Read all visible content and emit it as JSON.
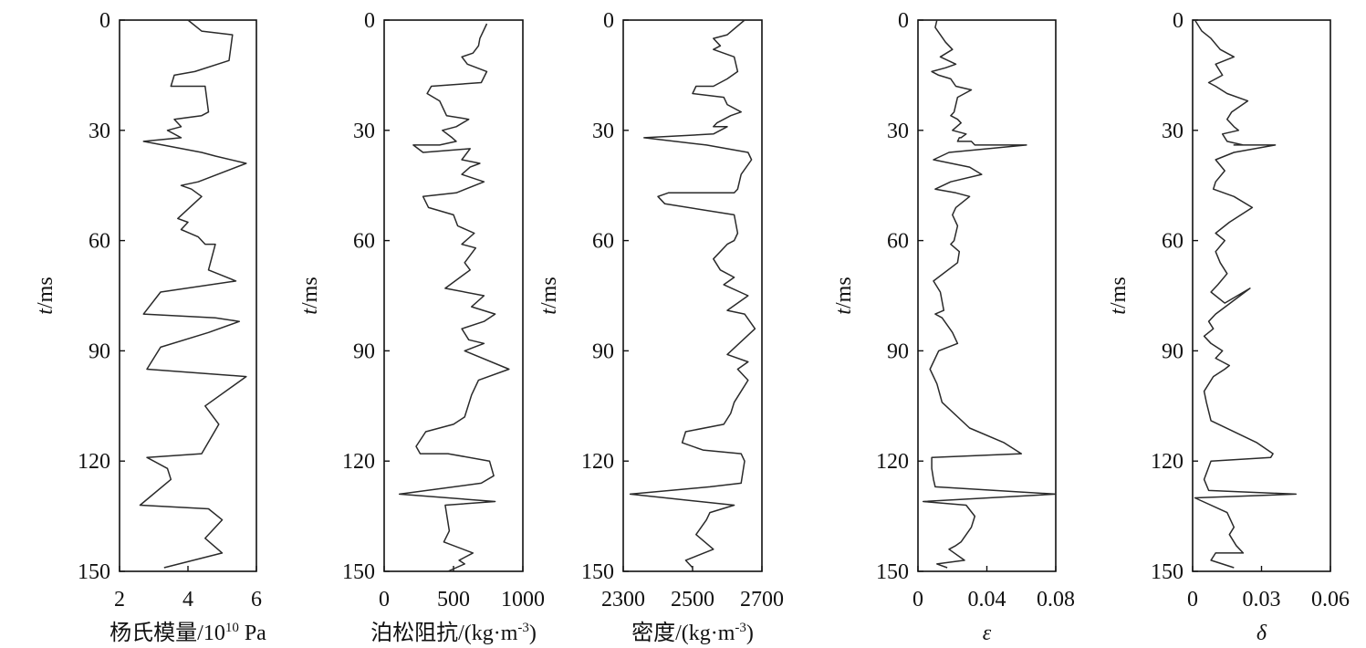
{
  "chart_data": [
    {
      "type": "line",
      "orientation": "vertical-log",
      "xlabel_main": "杨氏模量/10",
      "xlabel_sup": "10",
      "xlabel_tail": " Pa",
      "ylabel_main": "t",
      "ylabel_tail": "/ms",
      "xlim": [
        2,
        6
      ],
      "ylim": [
        0,
        150
      ],
      "xticks": [
        "2",
        "4",
        "6"
      ],
      "yticks": [
        "0",
        "30",
        "60",
        "90",
        "120",
        "150"
      ],
      "series": [
        {
          "x": [
            4.0,
            4.4,
            5.3,
            5.2,
            4.2,
            3.6,
            3.5,
            4.5,
            4.6,
            4.4,
            3.6,
            3.8,
            3.4,
            3.8,
            2.7,
            4.4,
            4.8,
            5.7,
            4.3,
            3.8,
            4.1,
            4.4,
            3.7,
            4.0,
            3.8,
            4.3,
            4.5,
            4.8,
            4.6,
            5.4,
            3.2,
            2.7,
            4.8,
            5.5,
            4.6,
            3.2,
            2.8,
            5.7,
            4.5,
            4.9,
            4.4,
            2.8,
            3.4,
            3.5,
            2.6,
            4.6,
            5.0,
            4.5,
            5.0,
            3.3
          ],
          "y": [
            0,
            3,
            4,
            11,
            14,
            15,
            18,
            18,
            25,
            26,
            27,
            29,
            30,
            32,
            33,
            36,
            37,
            39,
            44,
            45,
            46,
            48,
            54,
            55,
            57,
            59,
            61,
            61,
            68,
            71,
            74,
            80,
            81,
            82,
            85,
            89,
            95,
            97,
            105,
            110,
            118,
            119,
            122,
            125,
            132,
            133,
            136,
            141,
            145,
            149
          ]
        }
      ]
    },
    {
      "type": "line",
      "orientation": "vertical-log",
      "xlabel_main": "泊松阻抗/(kg·m",
      "xlabel_sup": "-3",
      "xlabel_tail": ")",
      "ylabel_main": "t",
      "ylabel_tail": "/ms",
      "xlim": [
        0,
        1000
      ],
      "ylim": [
        0,
        150
      ],
      "xticks": [
        "0",
        "500",
        "1000"
      ],
      "yticks": [
        "0",
        "30",
        "60",
        "90",
        "120",
        "150"
      ],
      "series": [
        {
          "x": [
            740,
            690,
            680,
            640,
            560,
            600,
            740,
            700,
            340,
            310,
            400,
            450,
            610,
            520,
            420,
            490,
            520,
            400,
            210,
            280,
            620,
            560,
            690,
            620,
            560,
            720,
            520,
            280,
            320,
            500,
            530,
            650,
            560,
            660,
            580,
            620,
            440,
            720,
            630,
            800,
            720,
            560,
            610,
            720,
            580,
            900,
            680,
            630,
            580,
            500,
            300,
            230,
            260,
            460,
            760,
            790,
            700,
            110,
            800,
            440,
            470,
            430,
            640,
            540,
            580,
            460
          ],
          "y": [
            1,
            5,
            7,
            9,
            10,
            12,
            14,
            17,
            18,
            20,
            22,
            26,
            27,
            29,
            30,
            32,
            33,
            34,
            34,
            36,
            35,
            38,
            39,
            40,
            42,
            44,
            47,
            48,
            51,
            53,
            56,
            58,
            61,
            62,
            66,
            68,
            73,
            75,
            78,
            80,
            82,
            84,
            87,
            88,
            90,
            95,
            98,
            102,
            108,
            110,
            112,
            116,
            118,
            118,
            120,
            124,
            126,
            129,
            131,
            132,
            139,
            142,
            145,
            147,
            148,
            150
          ]
        }
      ]
    },
    {
      "type": "line",
      "orientation": "vertical-log",
      "xlabel_main": "密度/(kg·m",
      "xlabel_sup": "-3",
      "xlabel_tail": ")",
      "ylabel_main": "t",
      "ylabel_tail": "/ms",
      "xlim": [
        2300,
        2700
      ],
      "ylim": [
        0,
        150
      ],
      "xticks": [
        "2300",
        "2500",
        "2700"
      ],
      "yticks": [
        "0",
        "30",
        "60",
        "90",
        "120",
        "150"
      ],
      "series": [
        {
          "x": [
            2650,
            2600,
            2560,
            2580,
            2560,
            2620,
            2630,
            2600,
            2560,
            2510,
            2500,
            2590,
            2600,
            2640,
            2610,
            2570,
            2560,
            2600,
            2560,
            2360,
            2540,
            2660,
            2670,
            2640,
            2630,
            2620,
            2530,
            2430,
            2400,
            2420,
            2620,
            2630,
            2620,
            2600,
            2560,
            2580,
            2620,
            2590,
            2660,
            2600,
            2650,
            2680,
            2600,
            2660,
            2630,
            2660,
            2640,
            2620,
            2610,
            2590,
            2480,
            2470,
            2530,
            2640,
            2650,
            2640,
            2550,
            2320,
            2620,
            2550,
            2540,
            2510,
            2560,
            2480,
            2500
          ],
          "y": [
            0,
            4,
            5,
            7,
            8,
            10,
            14,
            16,
            18,
            18,
            20,
            21,
            23,
            25,
            26,
            28,
            29,
            29,
            31,
            32,
            34,
            36,
            38,
            42,
            46,
            47,
            47,
            47,
            48,
            50,
            53,
            58,
            60,
            61,
            65,
            68,
            70,
            72,
            75,
            79,
            80,
            84,
            91,
            93,
            95,
            98,
            101,
            104,
            107,
            110,
            112,
            115,
            117,
            118,
            120,
            126,
            127,
            129,
            132,
            134,
            136,
            140,
            144,
            147,
            149
          ]
        }
      ]
    },
    {
      "type": "line",
      "orientation": "vertical-log",
      "xlabel_main": "ε",
      "xlabel_sup": "",
      "xlabel_tail": "",
      "ylabel_main": "t",
      "ylabel_tail": "/ms",
      "xlim": [
        0,
        0.08
      ],
      "ylim": [
        0,
        150
      ],
      "xticks": [
        "0",
        "0.04",
        "0.08"
      ],
      "yticks": [
        "0",
        "30",
        "60",
        "90",
        "120",
        "150"
      ],
      "series": [
        {
          "x": [
            0.011,
            0.01,
            0.013,
            0.016,
            0.02,
            0.013,
            0.022,
            0.016,
            0.008,
            0.012,
            0.019,
            0.022,
            0.031,
            0.023,
            0.021,
            0.019,
            0.023,
            0.025,
            0.02,
            0.028,
            0.025,
            0.024,
            0.023,
            0.031,
            0.033,
            0.063,
            0.018,
            0.009,
            0.03,
            0.037,
            0.019,
            0.01,
            0.022,
            0.03,
            0.022,
            0.02,
            0.023,
            0.021,
            0.019,
            0.024,
            0.023,
            0.009,
            0.013,
            0.015,
            0.01,
            0.014,
            0.017,
            0.02,
            0.023,
            0.012,
            0.007,
            0.011,
            0.014,
            0.03,
            0.05,
            0.06,
            0.008,
            0.008,
            0.009,
            0.01,
            0.08,
            0.003,
            0.028,
            0.033,
            0.031,
            0.025,
            0.022,
            0.018,
            0.027,
            0.011,
            0.017
          ],
          "y": [
            0,
            2,
            4,
            6,
            8,
            10,
            12,
            13,
            14,
            15,
            16,
            18,
            19,
            21,
            25,
            26,
            27,
            28,
            30,
            31,
            32,
            32,
            33,
            33,
            34,
            34,
            36,
            38,
            40,
            42,
            44,
            46,
            47,
            48,
            51,
            53,
            56,
            60,
            61,
            63,
            66,
            71,
            74,
            79,
            80,
            81,
            83,
            85,
            88,
            90,
            95,
            99,
            104,
            111,
            115,
            118,
            119,
            122,
            125,
            127,
            129,
            131,
            132,
            135,
            138,
            142,
            143,
            144,
            147,
            148,
            149
          ]
        }
      ]
    },
    {
      "type": "line",
      "orientation": "vertical-log",
      "xlabel_main": "δ",
      "xlabel_sup": "",
      "xlabel_tail": "",
      "ylabel_main": "t",
      "ylabel_tail": "/ms",
      "xlim": [
        0,
        0.06
      ],
      "ylim": [
        0,
        150
      ],
      "xticks": [
        "0",
        "0.03",
        "0.06"
      ],
      "yticks": [
        "0",
        "30",
        "60",
        "90",
        "120",
        "150"
      ],
      "series": [
        {
          "x": [
            0.001,
            0.004,
            0.008,
            0.012,
            0.018,
            0.01,
            0.013,
            0.007,
            0.01,
            0.015,
            0.024,
            0.017,
            0.015,
            0.018,
            0.02,
            0.013,
            0.015,
            0.022,
            0.018,
            0.036,
            0.018,
            0.01,
            0.014,
            0.01,
            0.009,
            0.018,
            0.026,
            0.016,
            0.01,
            0.014,
            0.01,
            0.012,
            0.015,
            0.011,
            0.008,
            0.014,
            0.025,
            0.01,
            0.007,
            0.009,
            0.005,
            0.008,
            0.013,
            0.01,
            0.016,
            0.014,
            0.009,
            0.005,
            0.006,
            0.008,
            0.028,
            0.035,
            0.034,
            0.008,
            0.005,
            0.007,
            0.045,
            0.001,
            0.015,
            0.018,
            0.016,
            0.019,
            0.022,
            0.01,
            0.008,
            0.018
          ],
          "y": [
            0,
            3,
            5,
            8,
            10,
            12,
            15,
            17,
            18,
            20,
            22,
            25,
            27,
            29,
            30,
            31,
            33,
            34,
            34,
            34,
            36,
            38,
            41,
            44,
            46,
            48,
            51,
            55,
            58,
            60,
            63,
            66,
            69,
            72,
            74,
            77,
            73,
            80,
            82,
            84,
            86,
            88,
            90,
            92,
            94,
            95,
            97,
            101,
            104,
            109,
            115,
            118,
            119,
            120,
            125,
            128,
            129,
            130,
            134,
            138,
            140,
            143,
            145,
            145,
            147,
            149
          ]
        }
      ]
    }
  ]
}
